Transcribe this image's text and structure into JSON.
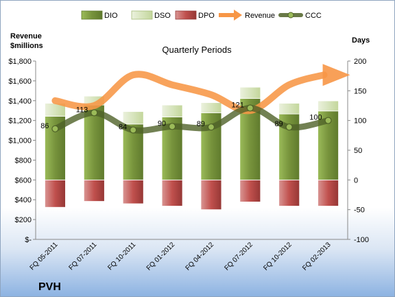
{
  "chart_data": {
    "type": "combo",
    "subtitle": "Quarterly Periods",
    "company": "PVH",
    "left_axis_title": [
      "Revenue",
      "$millions"
    ],
    "right_axis_title": "Days",
    "left_ticks": [
      "$1,800",
      "$1,600",
      "$1,400",
      "$1,200",
      "$1,000",
      "$800",
      "$600",
      "$400",
      "$200",
      "$-"
    ],
    "right_ticks": [
      "200",
      "150",
      "100",
      "50",
      "0",
      "-50",
      "-100"
    ],
    "left_range": [
      0,
      1800
    ],
    "right_range": [
      -100,
      200
    ],
    "categories": [
      "FQ 05-2011",
      "FQ 07-2011",
      "FQ 10-2011",
      "FQ 01-2012",
      "FQ 04-2012",
      "FQ 07-2012",
      "FQ 10-2012",
      "FQ 02-2013"
    ],
    "series": [
      {
        "name": "DIO",
        "axis": "days",
        "kind": "stacked-bar",
        "color": "#77933c",
        "values": [
          107,
          126,
          94,
          106,
          113,
          137,
          111,
          116
        ]
      },
      {
        "name": "DSO",
        "axis": "days",
        "kind": "stacked-bar",
        "color": "#d7e4bd",
        "values": [
          22,
          15,
          21,
          20,
          17,
          19,
          18,
          17
        ]
      },
      {
        "name": "DPO",
        "axis": "days",
        "kind": "negative-bar",
        "color": "#c0504d",
        "values": [
          -46,
          -36,
          -40,
          -44,
          -50,
          -37,
          -44,
          -44
        ]
      },
      {
        "name": "Revenue",
        "axis": "revenue",
        "kind": "arrow-line",
        "color": "#f79646",
        "values": [
          1400,
          1350,
          1660,
          1560,
          1460,
          1300,
          1560,
          1660
        ]
      },
      {
        "name": "CCC",
        "axis": "days",
        "kind": "line",
        "color": "#4f6228",
        "values": [
          86,
          113,
          84,
          90,
          89,
          121,
          89,
          100
        ]
      }
    ],
    "ccc_labels": [
      "86",
      "113",
      "84",
      "90",
      "89",
      "121",
      "89",
      "100"
    ]
  }
}
